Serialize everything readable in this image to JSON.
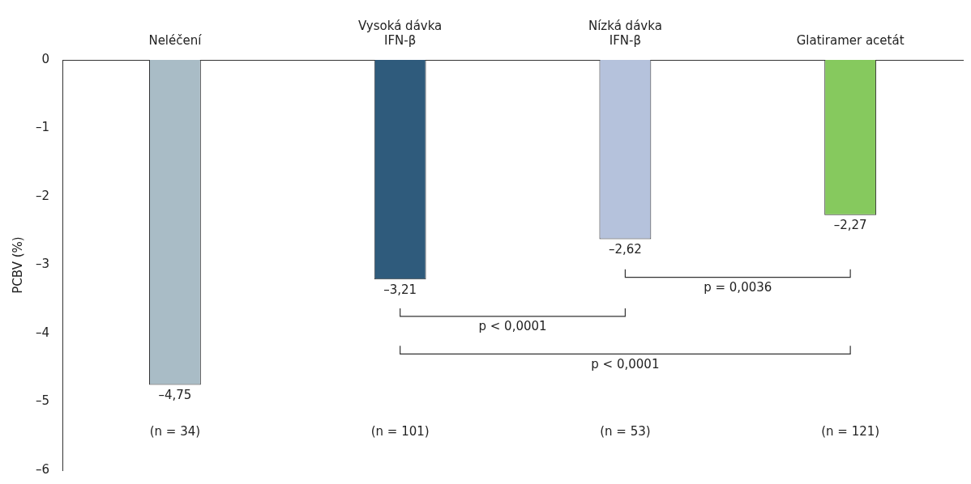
{
  "chart_data": {
    "type": "bar",
    "ylabel": "PCBV (%)",
    "categories": [
      "Neléčení",
      "Vysoká dávka\nIFN-β",
      "Nízká dávka\nIFN-β",
      "Glatiramer acetát"
    ],
    "values": [
      -4.75,
      -3.21,
      -2.62,
      -2.27
    ],
    "colors": [
      "#a9bcc6",
      "#2f5b7c",
      "#b5c2dc",
      "#86c95e"
    ],
    "value_labels": [
      "–4,75",
      "–3,21",
      "–2,62",
      "–2,27"
    ],
    "ylim": [
      -6,
      0
    ],
    "yticks": [
      {
        "value": 0,
        "label": "0"
      },
      {
        "value": -1,
        "label": "–1"
      },
      {
        "value": -2,
        "label": "–2"
      },
      {
        "value": -3,
        "label": "–3"
      },
      {
        "value": -4,
        "label": "–4"
      },
      {
        "value": -5,
        "label": "–5"
      },
      {
        "value": -6,
        "label": "–6"
      }
    ],
    "annotations": [
      "p = 0,0036",
      "p < 0,0001",
      "p < 0,0001",
      "(n = 34)",
      "(n = 101)",
      "(n = 53)",
      "(n = 121)"
    ],
    "grid": false,
    "legend": false
  }
}
